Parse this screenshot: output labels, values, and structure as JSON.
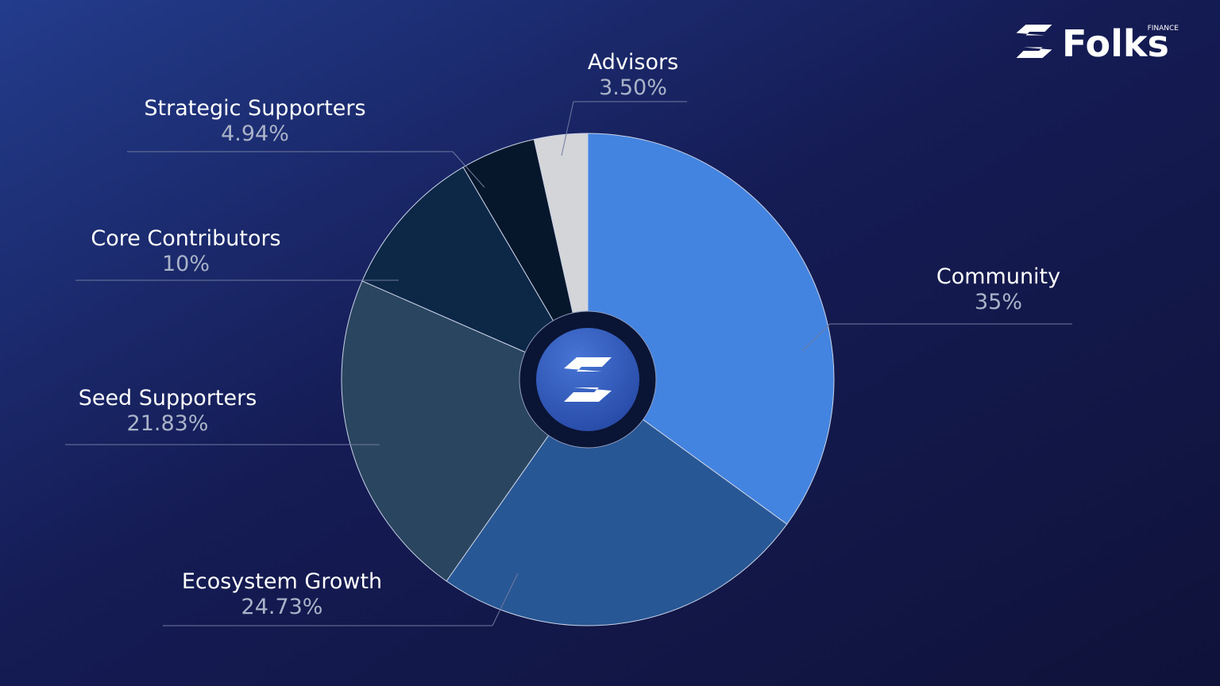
{
  "chart_data": {
    "type": "pie",
    "categories": [
      "Community",
      "Ecosystem Growth",
      "Seed Supporters",
      "Core Contributors",
      "Strategic Supporters",
      "Advisors"
    ],
    "values": [
      35,
      24.73,
      21.83,
      10,
      4.94,
      3.5
    ],
    "value_labels": [
      "35%",
      "24.73%",
      "21.83%",
      "10%",
      "4.94%",
      "3.50%"
    ],
    "colors": [
      "#4384e0",
      "#285795",
      "#2a4560",
      "#0d2747",
      "#06162b",
      "#d4d5d8"
    ]
  },
  "logo": {
    "name": "Folks",
    "sub": "FINANCE"
  }
}
